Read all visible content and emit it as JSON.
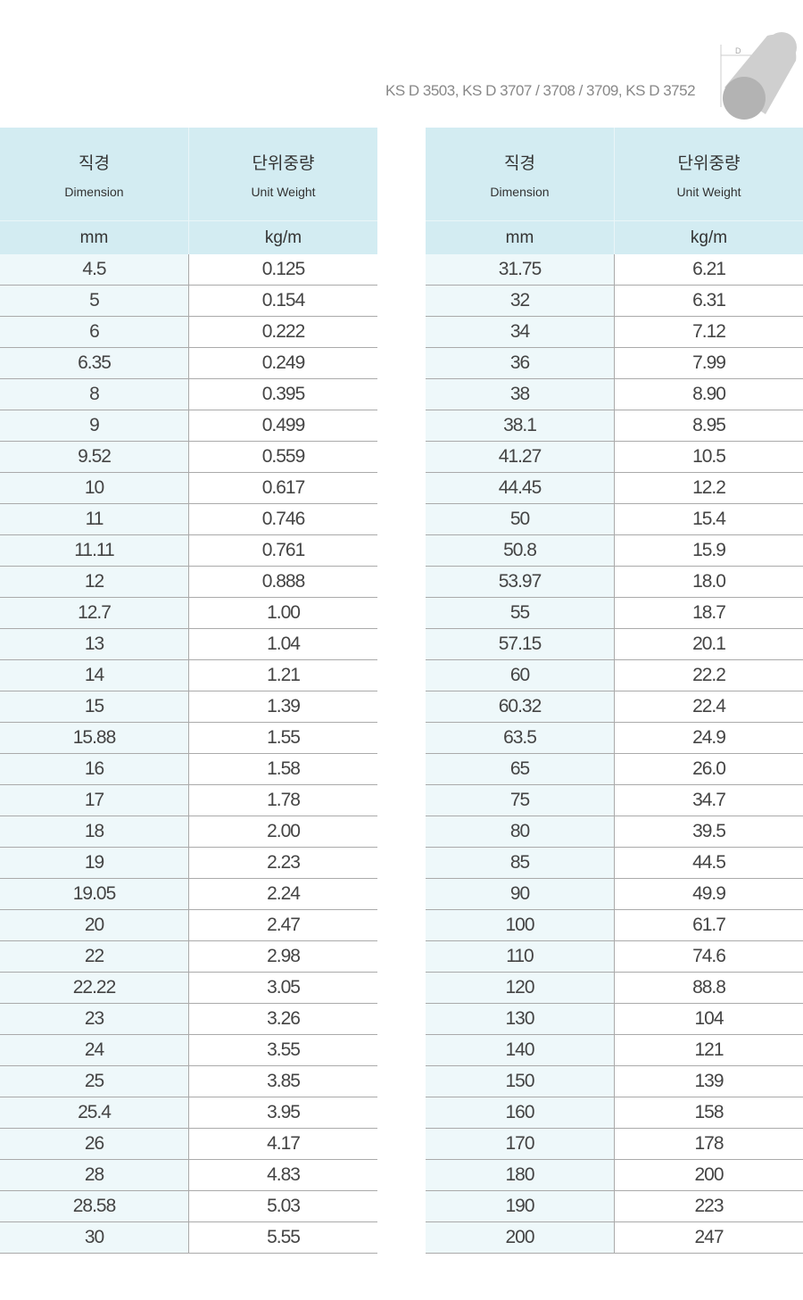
{
  "standard": "KS D 3503, KS D 3707 / 3708 / 3709, KS D 3752",
  "diagram_label": "D",
  "headers": {
    "dimension_kr": "직경",
    "dimension_en": "Dimension",
    "weight_kr": "단위중량",
    "weight_en": "Unit Weight",
    "dimension_unit": "mm",
    "weight_unit": "kg/m"
  },
  "colors": {
    "header_bg": "#d3ecf2",
    "first_col_bg": "#eef8fa"
  },
  "left_rows": [
    [
      "4.5",
      "0.125"
    ],
    [
      "5",
      "0.154"
    ],
    [
      "6",
      "0.222"
    ],
    [
      "6.35",
      "0.249"
    ],
    [
      "8",
      "0.395"
    ],
    [
      "9",
      "0.499"
    ],
    [
      "9.52",
      "0.559"
    ],
    [
      "10",
      "0.617"
    ],
    [
      "11",
      "0.746"
    ],
    [
      "11.11",
      "0.761"
    ],
    [
      "12",
      "0.888"
    ],
    [
      "12.7",
      "1.00"
    ],
    [
      "13",
      "1.04"
    ],
    [
      "14",
      "1.21"
    ],
    [
      "15",
      "1.39"
    ],
    [
      "15.88",
      "1.55"
    ],
    [
      "16",
      "1.58"
    ],
    [
      "17",
      "1.78"
    ],
    [
      "18",
      "2.00"
    ],
    [
      "19",
      "2.23"
    ],
    [
      "19.05",
      "2.24"
    ],
    [
      "20",
      "2.47"
    ],
    [
      "22",
      "2.98"
    ],
    [
      "22.22",
      "3.05"
    ],
    [
      "23",
      "3.26"
    ],
    [
      "24",
      "3.55"
    ],
    [
      "25",
      "3.85"
    ],
    [
      "25.4",
      "3.95"
    ],
    [
      "26",
      "4.17"
    ],
    [
      "28",
      "4.83"
    ],
    [
      "28.58",
      "5.03"
    ],
    [
      "30",
      "5.55"
    ]
  ],
  "right_rows": [
    [
      "31.75",
      "6.21"
    ],
    [
      "32",
      "6.31"
    ],
    [
      "34",
      "7.12"
    ],
    [
      "36",
      "7.99"
    ],
    [
      "38",
      "8.90"
    ],
    [
      "38.1",
      "8.95"
    ],
    [
      "41.27",
      "10.5"
    ],
    [
      "44.45",
      "12.2"
    ],
    [
      "50",
      "15.4"
    ],
    [
      "50.8",
      "15.9"
    ],
    [
      "53.97",
      "18.0"
    ],
    [
      "55",
      "18.7"
    ],
    [
      "57.15",
      "20.1"
    ],
    [
      "60",
      "22.2"
    ],
    [
      "60.32",
      "22.4"
    ],
    [
      "63.5",
      "24.9"
    ],
    [
      "65",
      "26.0"
    ],
    [
      "75",
      "34.7"
    ],
    [
      "80",
      "39.5"
    ],
    [
      "85",
      "44.5"
    ],
    [
      "90",
      "49.9"
    ],
    [
      "100",
      "61.7"
    ],
    [
      "110",
      "74.6"
    ],
    [
      "120",
      "88.8"
    ],
    [
      "130",
      "104"
    ],
    [
      "140",
      "121"
    ],
    [
      "150",
      "139"
    ],
    [
      "160",
      "158"
    ],
    [
      "170",
      "178"
    ],
    [
      "180",
      "200"
    ],
    [
      "190",
      "223"
    ],
    [
      "200",
      "247"
    ]
  ]
}
